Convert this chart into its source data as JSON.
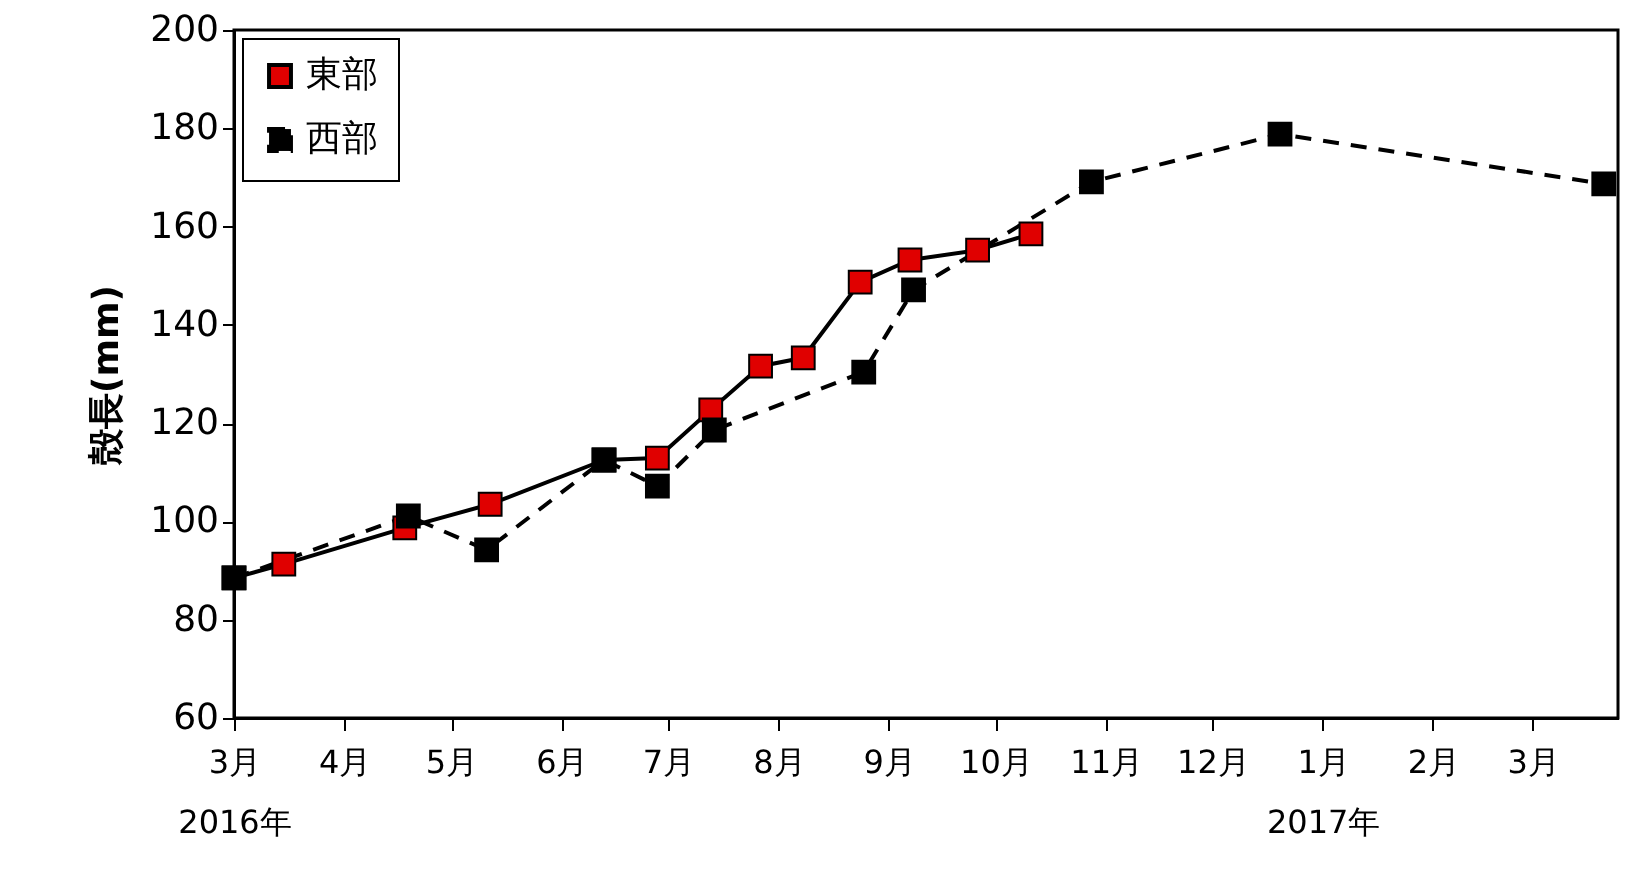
{
  "chart_data": {
    "type": "line",
    "ylabel": "殻長(mm)",
    "xlim": [
      "2016-03-01",
      "2017-03-25"
    ],
    "ylim": [
      60,
      200
    ],
    "yticks": [
      60,
      80,
      100,
      120,
      140,
      160,
      180,
      200
    ],
    "xticks": [
      {
        "value": "2016-03-01",
        "label": "3月\n2016年"
      },
      {
        "value": "2016-04-01",
        "label": "4月"
      },
      {
        "value": "2016-05-01",
        "label": "5月"
      },
      {
        "value": "2016-06-01",
        "label": "6月"
      },
      {
        "value": "2016-07-01",
        "label": "7月"
      },
      {
        "value": "2016-08-01",
        "label": "8月"
      },
      {
        "value": "2016-09-01",
        "label": "9月"
      },
      {
        "value": "2016-10-01",
        "label": "10月"
      },
      {
        "value": "2016-11-01",
        "label": "11月"
      },
      {
        "value": "2016-12-01",
        "label": "12月"
      },
      {
        "value": "2017-01-01",
        "label": "1月\n2017年"
      },
      {
        "value": "2017-02-01",
        "label": "2月"
      },
      {
        "value": "2017-03-01",
        "label": "3月"
      }
    ],
    "grid": false,
    "legend": "top left",
    "marker": "square",
    "series": [
      {
        "name": "東部",
        "color": "#e00000",
        "line_style": "solid",
        "x": [
          "2016-03-01",
          "2016-03-15",
          "2016-04-18",
          "2016-05-12",
          "2016-06-13",
          "2016-06-28",
          "2016-07-13",
          "2016-07-27",
          "2016-08-08",
          "2016-08-24",
          "2016-09-07",
          "2016-09-26",
          "2016-10-11"
        ],
        "values": [
          88.5,
          91.3,
          98.7,
          103.5,
          112.5,
          112.9,
          122.7,
          131.6,
          133.3,
          148.7,
          153.2,
          155.2,
          158.5
        ]
      },
      {
        "name": "西部",
        "color": "#000000",
        "line_style": "dashed",
        "x": [
          "2016-03-01",
          "2016-04-19",
          "2016-05-11",
          "2016-06-13",
          "2016-06-28",
          "2016-07-14",
          "2016-08-25",
          "2016-09-08",
          "2016-10-28",
          "2016-12-20",
          "2017-03-21"
        ],
        "values": [
          88.5,
          101.1,
          94.2,
          112.5,
          107.2,
          118.6,
          130.4,
          147.1,
          169.1,
          178.8,
          168.7
        ]
      }
    ]
  }
}
